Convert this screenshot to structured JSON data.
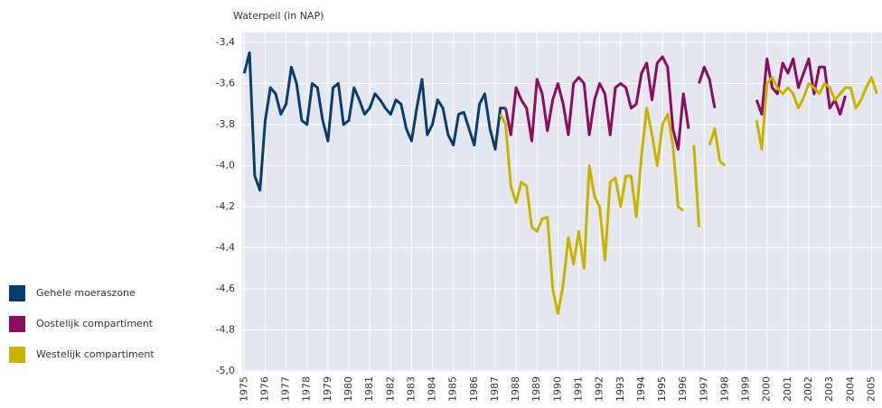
{
  "chart_data": {
    "type": "line",
    "title": "Waterpeil (in NAP)",
    "x": [
      1975,
      1975.25,
      1975.5,
      1975.75,
      1976,
      1976.25,
      1976.5,
      1976.75,
      1977,
      1977.25,
      1977.5,
      1977.75,
      1978,
      1978.25,
      1978.5,
      1978.75,
      1979,
      1979.25,
      1979.5,
      1979.75,
      1980,
      1980.25,
      1980.5,
      1980.75,
      1981,
      1981.25,
      1981.5,
      1981.75,
      1982,
      1982.25,
      1982.5,
      1982.75,
      1983,
      1983.25,
      1983.5,
      1983.75,
      1984,
      1984.25,
      1984.5,
      1984.75,
      1985,
      1985.25,
      1985.5,
      1985.75,
      1986,
      1986.25,
      1986.5,
      1986.75,
      1987,
      1987.25,
      1987.5,
      1987.75,
      1988,
      1988.25,
      1988.5,
      1988.75,
      1989,
      1989.25,
      1989.5,
      1989.75,
      1990,
      1990.25,
      1990.5,
      1990.75,
      1991,
      1991.25,
      1991.5,
      1991.75,
      1992,
      1992.25,
      1992.5,
      1992.75,
      1993,
      1993.25,
      1993.5,
      1993.75,
      1994,
      1994.25,
      1994.5,
      1994.75,
      1995,
      1995.25,
      1995.5,
      1995.75,
      1996,
      1996.25,
      1996.5,
      1996.75,
      1997,
      1997.25,
      1997.5,
      1997.75,
      1998,
      1998.25,
      1998.5,
      1998.75,
      1999,
      1999.25,
      1999.5,
      1999.75,
      2000,
      2000.25,
      2000.5,
      2000.75,
      2001,
      2001.25,
      2001.5,
      2001.75,
      2002,
      2002.25,
      2002.5,
      2002.75,
      2003,
      2003.25,
      2003.5,
      2003.75,
      2004,
      2004.25,
      2004.5,
      2004.75,
      2005,
      2005.25
    ],
    "series": [
      {
        "name": "Gehele moeraszone",
        "color": "#0b3c6e",
        "values": [
          -3.55,
          -3.45,
          -4.05,
          -4.12,
          -3.78,
          -3.62,
          -3.65,
          -3.75,
          -3.7,
          -3.52,
          -3.6,
          -3.78,
          -3.8,
          -3.6,
          -3.62,
          -3.78,
          -3.88,
          -3.62,
          -3.6,
          -3.8,
          -3.78,
          -3.62,
          -3.68,
          -3.75,
          -3.72,
          -3.65,
          -3.68,
          -3.72,
          -3.75,
          -3.68,
          -3.7,
          -3.82,
          -3.88,
          -3.72,
          -3.58,
          -3.85,
          -3.8,
          -3.68,
          -3.72,
          -3.85,
          -3.9,
          -3.75,
          -3.74,
          -3.82,
          -3.9,
          -3.7,
          -3.65,
          -3.82,
          -3.92,
          -3.72,
          -3.72,
          null,
          null,
          null,
          null,
          null,
          null,
          null,
          null,
          null,
          null,
          null,
          null,
          null,
          null,
          null,
          null,
          null,
          null,
          null,
          null,
          null,
          null,
          null,
          null,
          null,
          null,
          null,
          null,
          null,
          null,
          null,
          null,
          null,
          null,
          null,
          null,
          null,
          null,
          null,
          null,
          null,
          null,
          null,
          null,
          null,
          null,
          null,
          null,
          null,
          null,
          null,
          null,
          null,
          null,
          null,
          null,
          null,
          null,
          null,
          null,
          null,
          null,
          null,
          null,
          null,
          null,
          null,
          null,
          null,
          null,
          null
        ]
      },
      {
        "name": "Oostelijk compartiment",
        "color": "#8b0d5e",
        "values": [
          null,
          null,
          null,
          null,
          null,
          null,
          null,
          null,
          null,
          null,
          null,
          null,
          null,
          null,
          null,
          null,
          null,
          null,
          null,
          null,
          null,
          null,
          null,
          null,
          null,
          null,
          null,
          null,
          null,
          null,
          null,
          null,
          null,
          null,
          null,
          null,
          null,
          null,
          null,
          null,
          null,
          null,
          null,
          null,
          null,
          null,
          null,
          null,
          null,
          null,
          -3.72,
          -3.85,
          -3.62,
          -3.68,
          -3.72,
          -3.88,
          -3.58,
          -3.65,
          -3.83,
          -3.68,
          -3.6,
          -3.7,
          -3.85,
          -3.6,
          -3.57,
          -3.6,
          -3.85,
          -3.68,
          -3.6,
          -3.65,
          -3.85,
          -3.62,
          -3.6,
          -3.62,
          -3.72,
          -3.7,
          -3.55,
          -3.5,
          -3.68,
          -3.5,
          -3.47,
          -3.52,
          -3.82,
          -3.92,
          -3.65,
          -3.82,
          null,
          -3.6,
          -3.52,
          -3.58,
          -3.72,
          null,
          null,
          null,
          null,
          null,
          null,
          null,
          -3.68,
          -3.75,
          -3.48,
          -3.62,
          -3.65,
          -3.5,
          -3.55,
          -3.48,
          -3.62,
          -3.55,
          -3.48,
          -3.65,
          -3.52,
          -3.52,
          -3.72,
          -3.68,
          -3.75,
          -3.66,
          null,
          null,
          null,
          null,
          null,
          null
        ]
      },
      {
        "name": "Westelijk compartiment",
        "color": "#c8b400",
        "values": [
          null,
          null,
          null,
          null,
          null,
          null,
          null,
          null,
          null,
          null,
          null,
          null,
          null,
          null,
          null,
          null,
          null,
          null,
          null,
          null,
          null,
          null,
          null,
          null,
          null,
          null,
          null,
          null,
          null,
          null,
          null,
          null,
          null,
          null,
          null,
          null,
          null,
          null,
          null,
          null,
          null,
          null,
          null,
          null,
          null,
          null,
          null,
          null,
          null,
          -3.75,
          -3.8,
          -4.1,
          -4.18,
          -4.08,
          -4.1,
          -4.3,
          -4.32,
          -4.26,
          -4.25,
          -4.6,
          -4.72,
          -4.58,
          -4.35,
          -4.48,
          -4.32,
          -4.5,
          -4.0,
          -4.15,
          -4.2,
          -4.46,
          -4.08,
          -4.06,
          -4.2,
          -4.05,
          -4.05,
          -4.25,
          -3.95,
          -3.72,
          -3.85,
          -4.0,
          -3.8,
          -3.75,
          -3.9,
          -4.2,
          -4.22,
          null,
          -3.9,
          -4.3,
          null,
          -3.9,
          -3.82,
          -3.98,
          -4.0,
          null,
          null,
          null,
          null,
          null,
          -3.78,
          -3.92,
          -3.6,
          -3.57,
          -3.62,
          -3.65,
          -3.62,
          -3.65,
          -3.72,
          -3.67,
          -3.6,
          -3.62,
          -3.65,
          -3.6,
          -3.62,
          -3.68,
          -3.65,
          -3.62,
          -3.62,
          -3.72,
          -3.68,
          -3.62,
          -3.57,
          -3.65
        ]
      }
    ],
    "xlim": [
      1974.9,
      2005.5
    ],
    "xticks": [
      1975,
      1976,
      1977,
      1978,
      1979,
      1980,
      1981,
      1982,
      1983,
      1984,
      1985,
      1986,
      1987,
      1988,
      1989,
      1990,
      1991,
      1992,
      1993,
      1994,
      1995,
      1996,
      1997,
      1998,
      1999,
      2000,
      2001,
      2002,
      2003,
      2004,
      2005
    ],
    "ylim": [
      -5.0,
      -3.4
    ],
    "yticks": [
      {
        "value": -3.4,
        "label": "-3,4"
      },
      {
        "value": -3.6,
        "label": "-3,6"
      },
      {
        "value": -3.8,
        "label": "-3,8"
      },
      {
        "value": -4.0,
        "label": "-4,0"
      },
      {
        "value": -4.2,
        "label": "-4,2"
      },
      {
        "value": -4.4,
        "label": "-4,4"
      },
      {
        "value": -4.6,
        "label": "-4,6"
      },
      {
        "value": -4.8,
        "label": "-4,8"
      },
      {
        "value": -5.0,
        "label": "-5,0"
      }
    ],
    "grid": true
  }
}
